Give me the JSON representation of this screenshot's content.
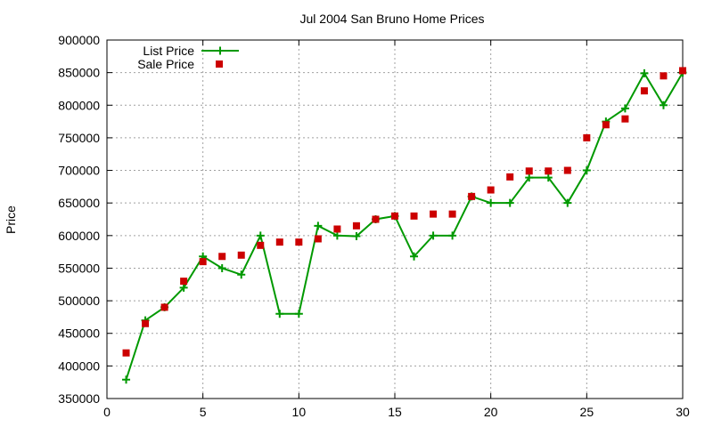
{
  "chart_data": {
    "type": "line",
    "title": "Jul 2004 San Bruno Home Prices",
    "xlabel": "",
    "ylabel": "Price",
    "xlim": [
      0,
      30
    ],
    "ylim": [
      350000,
      900000
    ],
    "xticks": [
      0,
      5,
      10,
      15,
      20,
      25,
      30
    ],
    "yticks": [
      350000,
      400000,
      450000,
      500000,
      550000,
      600000,
      650000,
      700000,
      750000,
      800000,
      850000,
      900000
    ],
    "grid": true,
    "legend_position": "top-left",
    "series": [
      {
        "name": "List Price",
        "kind": "line-points",
        "color": "#009900",
        "x": [
          1,
          2,
          3,
          4,
          5,
          6,
          7,
          8,
          9,
          10,
          11,
          12,
          13,
          14,
          15,
          16,
          17,
          18,
          19,
          20,
          21,
          22,
          23,
          24,
          25,
          26,
          27,
          28,
          29,
          30
        ],
        "y": [
          379000,
          470000,
          490000,
          520000,
          568000,
          550000,
          540000,
          600000,
          480000,
          480000,
          615000,
          600000,
          599000,
          625000,
          630000,
          568000,
          600000,
          600000,
          660000,
          650000,
          650000,
          689000,
          689000,
          650000,
          700000,
          775000,
          795000,
          849000,
          800000,
          850000
        ]
      },
      {
        "name": "Sale Price",
        "kind": "points",
        "color": "#cc0000",
        "x": [
          1,
          2,
          3,
          4,
          5,
          6,
          7,
          8,
          9,
          10,
          11,
          12,
          13,
          14,
          15,
          16,
          17,
          18,
          19,
          20,
          21,
          22,
          23,
          24,
          25,
          26,
          27,
          28,
          29,
          30
        ],
        "y": [
          420000,
          465000,
          490000,
          530000,
          560000,
          568000,
          570000,
          585000,
          590000,
          590000,
          595000,
          610000,
          615000,
          625000,
          630000,
          630000,
          633000,
          633000,
          660000,
          670000,
          690000,
          699000,
          699000,
          700000,
          750000,
          770000,
          779000,
          822000,
          845000,
          853000
        ]
      }
    ]
  }
}
